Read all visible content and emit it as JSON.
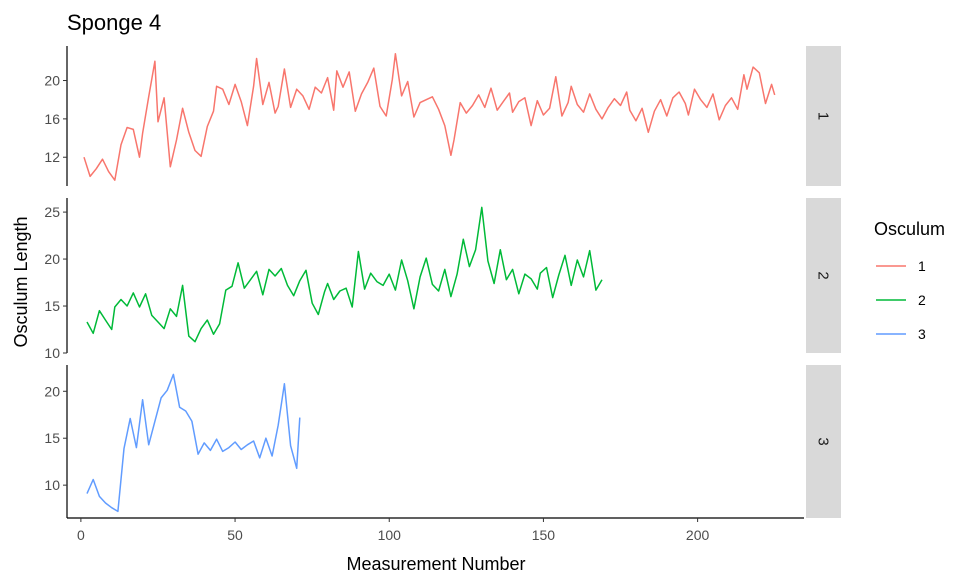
{
  "chart_data": {
    "type": "line",
    "title": "Sponge 4",
    "xlabel": "Measurement Number",
    "ylabel": "Osculum Length",
    "xlim": [
      -4.5,
      234.5
    ],
    "x_ticks": [
      0,
      50,
      100,
      150,
      200
    ],
    "legend": {
      "title": "Osculum",
      "placement": "right"
    },
    "grid": false,
    "panels": [
      {
        "strip_label": "1",
        "color": "#F8766D",
        "ylim": [
          9.0,
          23.6
        ],
        "y_ticks": [
          12,
          16,
          20
        ],
        "series": {
          "name": "1",
          "x": [
            1,
            3,
            5,
            7,
            9,
            11,
            13,
            15,
            17,
            19,
            20,
            22,
            24,
            25,
            27,
            29,
            31,
            33,
            35,
            37,
            39,
            41,
            43,
            44,
            46,
            48,
            50,
            52,
            54,
            56,
            57,
            59,
            61,
            63,
            64,
            66,
            68,
            70,
            72,
            74,
            76,
            78,
            80,
            82,
            83,
            85,
            87,
            89,
            91,
            93,
            95,
            97,
            99,
            101,
            102,
            104,
            106,
            108,
            110,
            112,
            114,
            116,
            118,
            120,
            121,
            123,
            125,
            127,
            129,
            131,
            133,
            135,
            137,
            139,
            140,
            142,
            144,
            146,
            148,
            150,
            152,
            154,
            156,
            158,
            159,
            161,
            163,
            165,
            167,
            169,
            171,
            173,
            175,
            177,
            178,
            180,
            182,
            184,
            186,
            188,
            190,
            192,
            194,
            196,
            197,
            199,
            201,
            203,
            205,
            207,
            209,
            211,
            213,
            215,
            216,
            218,
            220,
            222,
            224,
            225
          ],
          "values": [
            12.0,
            10.0,
            10.8,
            11.8,
            10.5,
            9.6,
            13.3,
            15.1,
            14.9,
            12.0,
            14.5,
            18.3,
            22.0,
            15.7,
            18.2,
            11.0,
            13.8,
            17.1,
            14.6,
            12.7,
            12.1,
            15.2,
            16.8,
            19.4,
            19.1,
            17.5,
            19.6,
            17.8,
            15.3,
            19.4,
            22.3,
            17.5,
            19.8,
            16.6,
            17.3,
            21.2,
            17.2,
            19.1,
            18.4,
            17.0,
            19.3,
            18.7,
            20.3,
            16.9,
            21.0,
            19.3,
            20.9,
            16.8,
            18.6,
            19.8,
            21.3,
            17.3,
            16.3,
            20.1,
            22.8,
            18.4,
            19.9,
            16.2,
            17.7,
            18.0,
            18.3,
            17.0,
            15.3,
            12.2,
            13.8,
            17.7,
            16.6,
            17.4,
            18.5,
            17.2,
            19.2,
            16.9,
            17.8,
            18.7,
            16.7,
            17.8,
            18.2,
            15.3,
            17.9,
            16.4,
            17.1,
            20.4,
            16.3,
            17.7,
            19.4,
            17.5,
            16.7,
            18.6,
            17.0,
            16.0,
            17.2,
            18.1,
            17.4,
            18.8,
            16.9,
            15.8,
            17.1,
            14.6,
            16.8,
            18.0,
            16.3,
            18.2,
            18.8,
            17.6,
            16.4,
            19.1,
            18.0,
            17.2,
            18.6,
            15.9,
            17.4,
            18.2,
            17.0,
            20.6,
            19.1,
            21.4,
            20.8,
            17.6,
            19.6,
            18.5
          ]
        }
      },
      {
        "strip_label": "2",
        "color": "#00BA38",
        "ylim": [
          10.0,
          26.5
        ],
        "y_ticks": [
          10,
          15,
          20,
          25
        ],
        "series": {
          "name": "2",
          "x": [
            2,
            4,
            6,
            8,
            10,
            11,
            13,
            15,
            17,
            19,
            21,
            23,
            25,
            27,
            29,
            31,
            33,
            35,
            37,
            39,
            41,
            43,
            45,
            47,
            49,
            51,
            53,
            55,
            57,
            59,
            61,
            63,
            65,
            67,
            69,
            71,
            73,
            75,
            77,
            79,
            80,
            82,
            84,
            86,
            88,
            90,
            92,
            94,
            96,
            98,
            100,
            102,
            104,
            106,
            108,
            110,
            112,
            114,
            116,
            118,
            120,
            122,
            124,
            126,
            128,
            130,
            132,
            134,
            136,
            138,
            140,
            142,
            144,
            146,
            148,
            149,
            151,
            153,
            155,
            157,
            159,
            161,
            163,
            165,
            167,
            169
          ],
          "values": [
            13.3,
            12.1,
            14.5,
            13.5,
            12.5,
            14.9,
            15.7,
            15.0,
            16.4,
            14.9,
            16.3,
            14.0,
            13.3,
            12.6,
            14.7,
            13.9,
            17.2,
            11.8,
            11.2,
            12.6,
            13.5,
            12.0,
            13.1,
            16.7,
            17.1,
            19.6,
            16.9,
            17.8,
            18.7,
            16.2,
            18.9,
            18.2,
            19.0,
            17.2,
            16.1,
            17.7,
            18.8,
            15.3,
            14.1,
            16.5,
            17.4,
            15.7,
            16.6,
            16.9,
            14.9,
            20.8,
            16.8,
            18.5,
            17.6,
            17.2,
            18.4,
            16.7,
            19.9,
            17.7,
            14.7,
            18.1,
            20.1,
            17.3,
            16.6,
            18.9,
            16.0,
            18.4,
            22.1,
            19.2,
            21.0,
            25.5,
            19.8,
            17.4,
            21.0,
            17.8,
            18.9,
            16.3,
            18.4,
            17.9,
            16.8,
            18.5,
            19.1,
            15.9,
            18.3,
            20.4,
            17.2,
            19.9,
            18.1,
            20.9,
            16.7,
            17.8
          ]
        }
      },
      {
        "strip_label": "3",
        "color": "#619CFF",
        "ylim": [
          6.5,
          22.8
        ],
        "y_ticks": [
          10,
          15,
          20
        ],
        "series": {
          "name": "3",
          "x": [
            2,
            4,
            6,
            8,
            10,
            12,
            14,
            16,
            18,
            20,
            22,
            24,
            26,
            28,
            30,
            32,
            34,
            36,
            38,
            40,
            42,
            44,
            46,
            48,
            50,
            52,
            54,
            56,
            58,
            60,
            62,
            64,
            66,
            68,
            70,
            71
          ],
          "values": [
            9.1,
            10.6,
            8.8,
            8.1,
            7.6,
            7.2,
            13.9,
            17.1,
            14.0,
            19.1,
            14.3,
            16.8,
            19.3,
            20.1,
            21.8,
            18.3,
            17.9,
            16.8,
            13.3,
            14.5,
            13.7,
            14.9,
            13.6,
            14.0,
            14.6,
            13.8,
            14.3,
            14.7,
            12.9,
            15.0,
            13.1,
            16.4,
            20.8,
            14.2,
            11.8,
            17.2
          ]
        }
      }
    ]
  }
}
